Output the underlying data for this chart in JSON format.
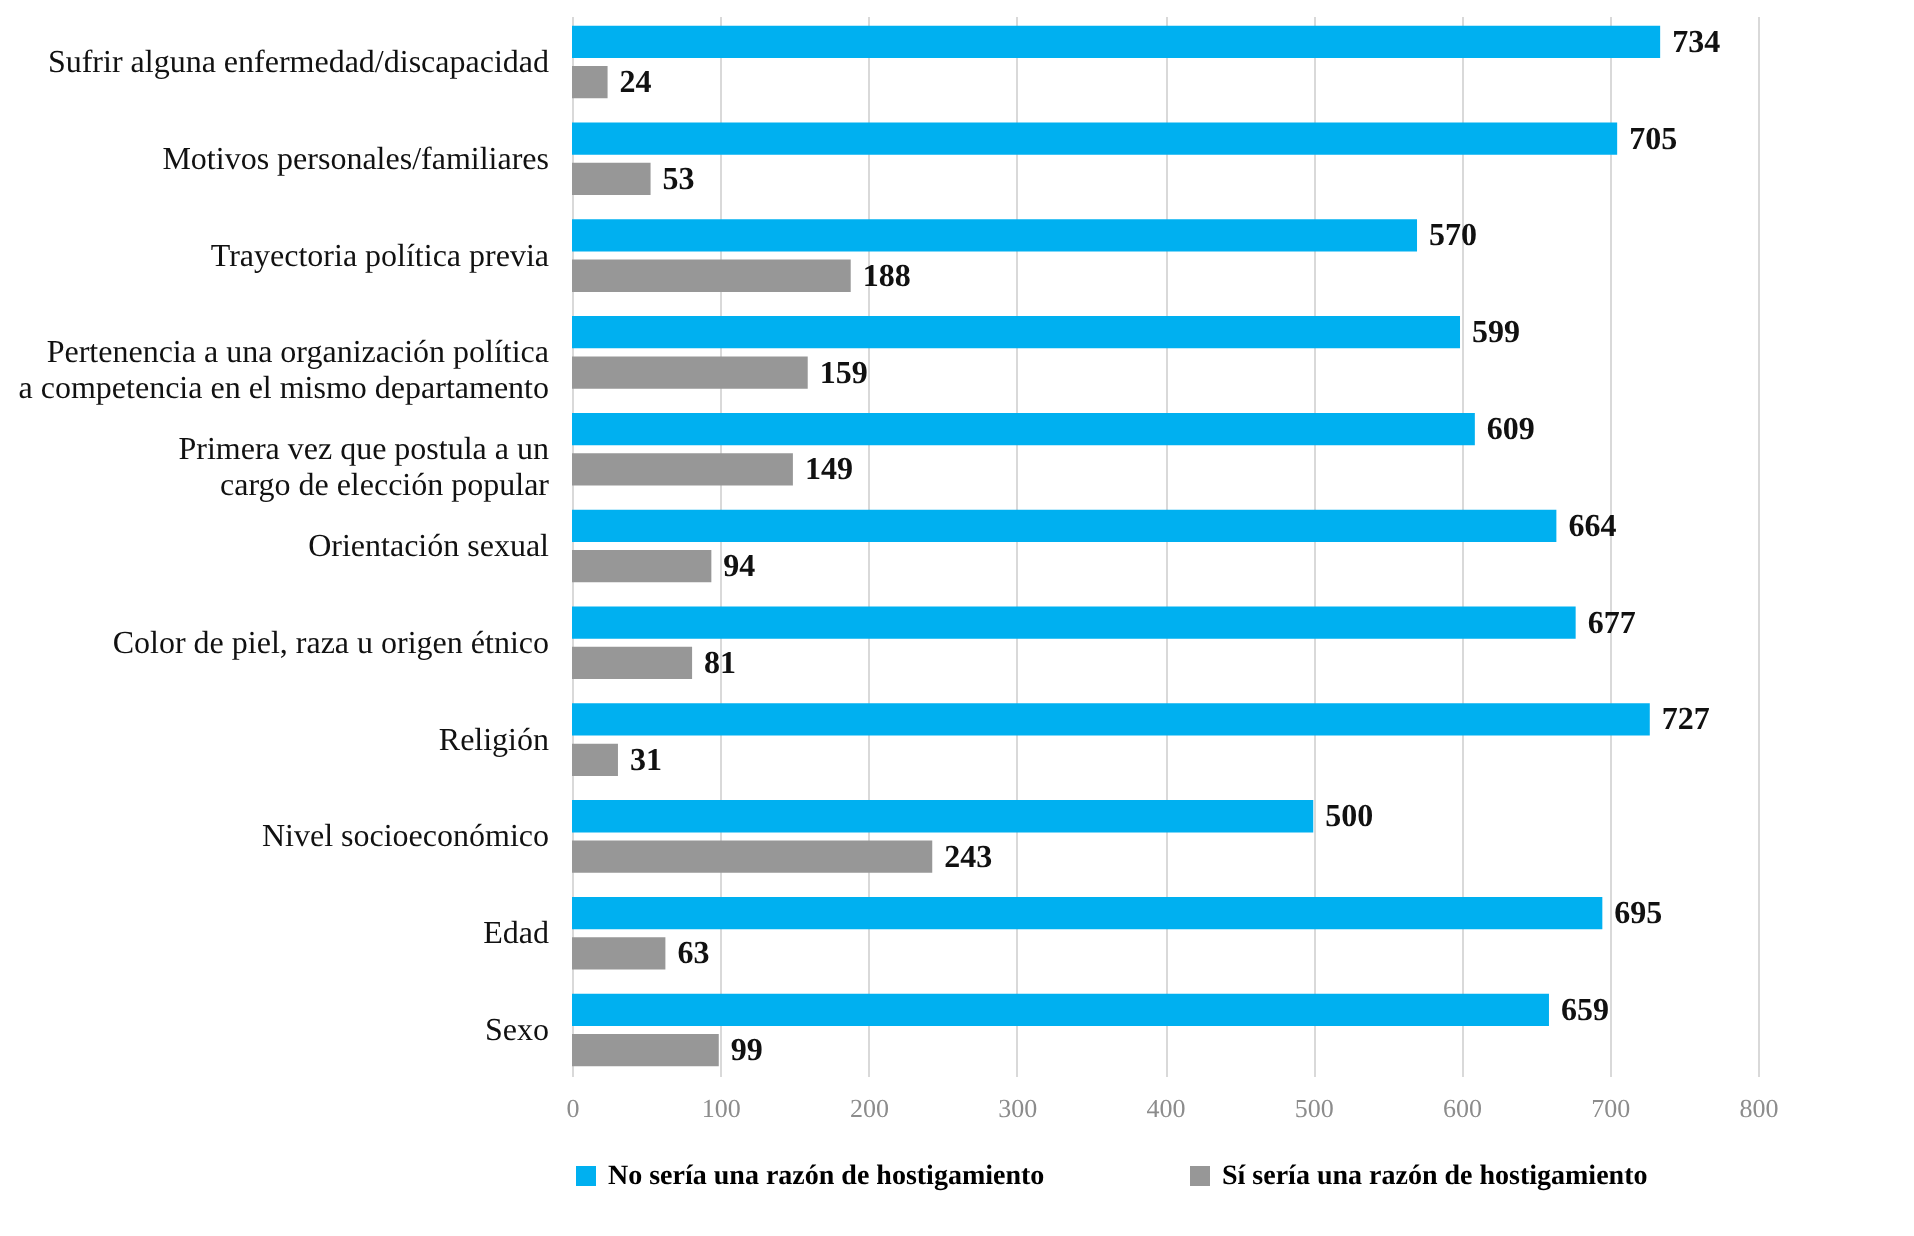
{
  "chart_data": {
    "type": "bar",
    "orientation": "horizontal",
    "categories": [
      "Sufrir alguna enfermedad/discapacidad",
      "Motivos personales/familiares",
      "Trayectoria política previa",
      "Pertenencia a una organización política\na competencia en el mismo departamento",
      "Primera vez que postula a un\ncargo de elección popular",
      "Orientación sexual",
      "Color de piel, raza u origen étnico",
      "Religión",
      "Nivel socioeconómico",
      "Edad",
      "Sexo"
    ],
    "series": [
      {
        "name": "No sería una razón de hostigamiento",
        "color": "#00b0f0",
        "values": [
          734,
          705,
          570,
          599,
          609,
          664,
          677,
          727,
          500,
          695,
          659
        ]
      },
      {
        "name": "Sí sería una razón de hostigamiento",
        "color": "#979797",
        "values": [
          24,
          53,
          188,
          159,
          149,
          94,
          81,
          31,
          243,
          63,
          99
        ]
      }
    ],
    "xlim": [
      0,
      800
    ],
    "xticks": [
      0,
      100,
      200,
      300,
      400,
      500,
      600,
      700,
      800
    ],
    "grid": "x",
    "legend": "bottom",
    "data_labels": true
  }
}
